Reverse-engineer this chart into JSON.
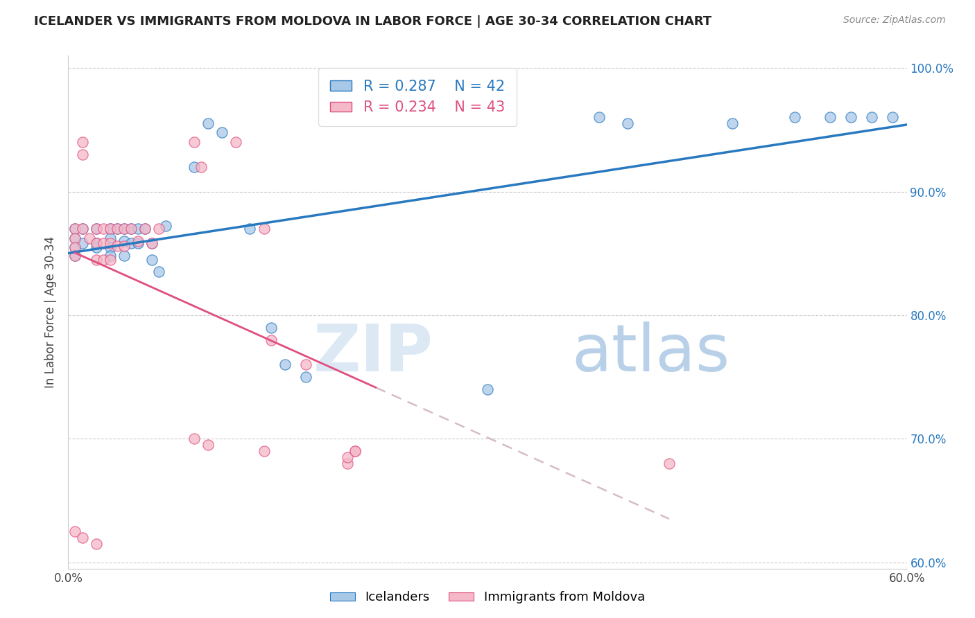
{
  "title": "ICELANDER VS IMMIGRANTS FROM MOLDOVA IN LABOR FORCE | AGE 30-34 CORRELATION CHART",
  "source": "Source: ZipAtlas.com",
  "ylabel": "In Labor Force | Age 30-34",
  "legend_blue": "Icelanders",
  "legend_pink": "Immigrants from Moldova",
  "r_blue": 0.287,
  "n_blue": 42,
  "r_pink": 0.234,
  "n_pink": 43,
  "blue_color": "#a8c8e8",
  "pink_color": "#f4b8c8",
  "trend_blue": "#2979c0",
  "trend_pink": "#e05080",
  "xlim": [
    0.0,
    0.6
  ],
  "ylim": [
    0.595,
    1.01
  ],
  "ytick_vals": [
    0.6,
    0.7,
    0.8,
    0.9,
    1.0
  ],
  "ytick_labels": [
    "60.0%",
    "70.0%",
    "80.0%",
    "90.0%",
    "100.0%"
  ],
  "xtick_vals": [
    0.0,
    0.1,
    0.2,
    0.3,
    0.4,
    0.5,
    0.6
  ],
  "xtick_labels": [
    "0.0%",
    "",
    "",
    "",
    "",
    "",
    "60.0%"
  ],
  "blue_x": [
    0.005,
    0.005,
    0.005,
    0.005,
    0.01,
    0.01,
    0.02,
    0.02,
    0.02,
    0.03,
    0.03,
    0.03,
    0.03,
    0.035,
    0.04,
    0.04,
    0.04,
    0.045,
    0.045,
    0.05,
    0.05,
    0.055,
    0.06,
    0.06,
    0.065,
    0.07,
    0.09,
    0.1,
    0.11,
    0.13,
    0.145,
    0.155,
    0.17,
    0.3,
    0.38,
    0.4,
    0.475,
    0.52,
    0.545,
    0.56,
    0.575,
    0.59
  ],
  "blue_y": [
    0.87,
    0.862,
    0.855,
    0.848,
    0.87,
    0.858,
    0.87,
    0.855,
    0.858,
    0.87,
    0.862,
    0.855,
    0.848,
    0.87,
    0.87,
    0.86,
    0.848,
    0.87,
    0.858,
    0.87,
    0.858,
    0.87,
    0.858,
    0.845,
    0.835,
    0.872,
    0.92,
    0.955,
    0.948,
    0.87,
    0.79,
    0.76,
    0.75,
    0.74,
    0.96,
    0.955,
    0.955,
    0.96,
    0.96,
    0.96,
    0.96,
    0.96
  ],
  "pink_x": [
    0.005,
    0.005,
    0.005,
    0.005,
    0.01,
    0.01,
    0.01,
    0.015,
    0.02,
    0.02,
    0.02,
    0.025,
    0.025,
    0.025,
    0.03,
    0.03,
    0.03,
    0.035,
    0.035,
    0.04,
    0.04,
    0.045,
    0.05,
    0.055,
    0.06,
    0.065,
    0.09,
    0.095,
    0.12,
    0.14,
    0.145,
    0.17,
    0.2,
    0.205,
    0.43
  ],
  "pink_y": [
    0.87,
    0.862,
    0.855,
    0.848,
    0.93,
    0.94,
    0.87,
    0.862,
    0.87,
    0.858,
    0.845,
    0.87,
    0.858,
    0.845,
    0.87,
    0.858,
    0.845,
    0.87,
    0.856,
    0.87,
    0.856,
    0.87,
    0.86,
    0.87,
    0.858,
    0.87,
    0.94,
    0.92,
    0.94,
    0.87,
    0.78,
    0.76,
    0.68,
    0.69,
    0.68
  ],
  "pink_extra_x": [
    0.005,
    0.01,
    0.02,
    0.09,
    0.1,
    0.14,
    0.2,
    0.205
  ],
  "pink_extra_y": [
    0.625,
    0.62,
    0.615,
    0.7,
    0.695,
    0.69,
    0.685,
    0.69
  ]
}
